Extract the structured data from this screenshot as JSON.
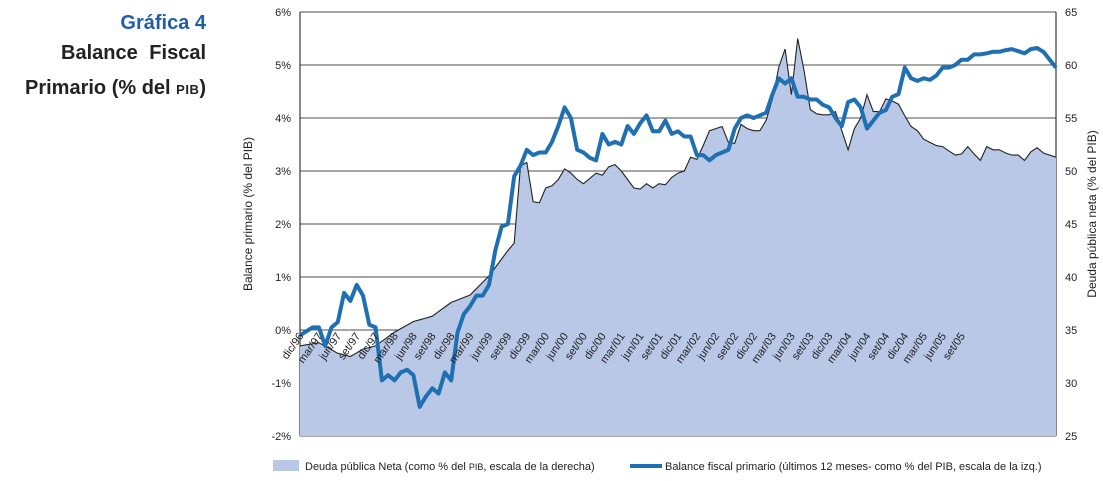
{
  "caption": {
    "number": "Gráfica 4",
    "line1": "Balance Fiscal",
    "line2_prefix": "Primario (% del ",
    "line2_pib": "PIB",
    "line2_suffix": ")"
  },
  "colors": {
    "area_fill": "#b8c8e6",
    "area_line": "#222222",
    "balance_line": "#1f6fb3",
    "grid": "#111111"
  },
  "chart_data": {
    "type": "line",
    "left_axis": {
      "label": "Balance primario (% del PIB)",
      "ylim": [
        -2,
        6
      ],
      "ticks": [
        -2,
        -1,
        0,
        1,
        2,
        3,
        4,
        5,
        6
      ],
      "tick_labels": [
        "-2%",
        "-1%",
        "0%",
        "1%",
        "2%",
        "3%",
        "4%",
        "5%",
        "6%"
      ]
    },
    "right_axis": {
      "label": "Deuda pública neta (% del PIB)",
      "ylim": [
        25,
        65
      ],
      "ticks": [
        25,
        30,
        35,
        40,
        45,
        50,
        55,
        60,
        65
      ],
      "tick_labels": [
        "25",
        "30",
        "35",
        "40",
        "45",
        "50",
        "55",
        "60",
        "65"
      ]
    },
    "x_tick_labels": [
      "dic/96",
      "mar/97",
      "jun/97",
      "set/97",
      "dic/97",
      "mar/98",
      "jun/98",
      "set/98",
      "dic/98",
      "mar/99",
      "jun/99",
      "set/99",
      "dic/99",
      "mar/00",
      "jun/00",
      "set/00",
      "dic/00",
      "mar/01",
      "jun/01",
      "set/01",
      "dic/01",
      "mar/02",
      "jun/02",
      "set/02",
      "dic/02",
      "mar/03",
      "jun/03",
      "set/03",
      "dic/03",
      "mar/04",
      "jun/04",
      "set/04",
      "dic/04",
      "mar/05",
      "jun/05",
      "set/05"
    ],
    "n_months": 108,
    "series": [
      {
        "name": "Deuda pública Neta (como % del PIB, escala de la derecha)",
        "legend_prefix": "Deuda pública Neta (como % del ",
        "legend_pib": "PIB",
        "legend_suffix": ", escala de la derecha)",
        "axis": "right",
        "style": "area",
        "keyframes": [
          [
            0,
            33.5
          ],
          [
            3,
            33.8
          ],
          [
            6,
            32.8
          ],
          [
            8,
            32.5
          ],
          [
            10,
            33.2
          ],
          [
            12,
            33.5
          ],
          [
            15,
            34.8
          ],
          [
            18,
            35.8
          ],
          [
            21,
            36.3
          ],
          [
            24,
            37.6
          ],
          [
            27,
            38.3
          ],
          [
            30,
            40.1
          ],
          [
            33,
            42.5
          ],
          [
            34,
            43.2
          ],
          [
            35,
            50.5
          ],
          [
            36,
            50.8
          ],
          [
            37,
            47.1
          ],
          [
            38,
            47.0
          ],
          [
            39,
            48.4
          ],
          [
            40,
            48.6
          ],
          [
            41,
            49.2
          ],
          [
            42,
            50.2
          ],
          [
            43,
            49.8
          ],
          [
            44,
            49.2
          ],
          [
            45,
            48.8
          ],
          [
            46,
            49.3
          ],
          [
            47,
            49.8
          ],
          [
            48,
            49.6
          ],
          [
            49,
            50.4
          ],
          [
            50,
            50.6
          ],
          [
            51,
            50.0
          ],
          [
            52,
            49.2
          ],
          [
            53,
            48.4
          ],
          [
            54,
            48.3
          ],
          [
            55,
            48.8
          ],
          [
            56,
            48.4
          ],
          [
            57,
            48.8
          ],
          [
            58,
            48.7
          ],
          [
            59,
            49.4
          ],
          [
            60,
            49.8
          ],
          [
            61,
            50.0
          ],
          [
            62,
            51.3
          ],
          [
            63,
            51.1
          ],
          [
            64,
            52.4
          ],
          [
            65,
            53.8
          ],
          [
            66,
            54.0
          ],
          [
            67,
            54.2
          ],
          [
            68,
            52.7
          ],
          [
            69,
            52.6
          ],
          [
            70,
            54.4
          ],
          [
            71,
            54.0
          ],
          [
            72,
            53.8
          ],
          [
            73,
            53.8
          ],
          [
            74,
            54.8
          ],
          [
            75,
            56.8
          ],
          [
            76,
            59.8
          ],
          [
            77,
            61.5
          ],
          [
            78,
            57.2
          ],
          [
            79,
            62.5
          ],
          [
            80,
            59.5
          ],
          [
            81,
            55.8
          ],
          [
            82,
            55.4
          ],
          [
            83,
            55.3
          ],
          [
            84,
            55.3
          ],
          [
            85,
            55.6
          ],
          [
            86,
            53.8
          ],
          [
            87,
            52.0
          ],
          [
            88,
            54.0
          ],
          [
            89,
            55.0
          ],
          [
            90,
            57.2
          ],
          [
            91,
            55.6
          ],
          [
            92,
            55.6
          ],
          [
            93,
            56.8
          ],
          [
            94,
            56.6
          ],
          [
            95,
            56.3
          ],
          [
            96,
            55.2
          ],
          [
            97,
            54.2
          ],
          [
            98,
            53.8
          ],
          [
            99,
            53.0
          ],
          [
            100,
            52.7
          ],
          [
            101,
            52.4
          ],
          [
            102,
            52.3
          ],
          [
            103,
            51.9
          ],
          [
            104,
            51.5
          ],
          [
            105,
            51.6
          ],
          [
            106,
            52.3
          ],
          [
            107,
            51.6
          ],
          [
            108,
            51.0
          ],
          [
            109,
            52.3
          ],
          [
            110,
            52.0
          ],
          [
            111,
            52.0
          ],
          [
            112,
            51.7
          ],
          [
            113,
            51.5
          ],
          [
            114,
            51.5
          ],
          [
            115,
            51.0
          ],
          [
            116,
            51.8
          ],
          [
            117,
            52.2
          ],
          [
            118,
            51.7
          ],
          [
            119,
            51.5
          ],
          [
            120,
            51.3
          ]
        ]
      },
      {
        "name": "Balance fiscal primario (últimos 12 meses- como % del PIB, escala de la izq.)",
        "legend": "Balance fiscal primario (últimos 12 meses- como % del PIB, escala de la izq.)",
        "axis": "left",
        "style": "line",
        "keyframes": [
          [
            0,
            -0.1
          ],
          [
            2,
            0.05
          ],
          [
            3,
            0.05
          ],
          [
            4,
            -0.3
          ],
          [
            5,
            0.05
          ],
          [
            6,
            0.15
          ],
          [
            7,
            0.7
          ],
          [
            8,
            0.55
          ],
          [
            9,
            0.85
          ],
          [
            10,
            0.65
          ],
          [
            11,
            0.1
          ],
          [
            12,
            0.05
          ],
          [
            13,
            -0.95
          ],
          [
            14,
            -0.85
          ],
          [
            15,
            -0.95
          ],
          [
            16,
            -0.8
          ],
          [
            17,
            -0.75
          ],
          [
            18,
            -0.85
          ],
          [
            19,
            -1.45
          ],
          [
            20,
            -1.25
          ],
          [
            21,
            -1.1
          ],
          [
            22,
            -1.2
          ],
          [
            23,
            -0.8
          ],
          [
            24,
            -0.95
          ],
          [
            25,
            -0.05
          ],
          [
            26,
            0.3
          ],
          [
            27,
            0.45
          ],
          [
            28,
            0.65
          ],
          [
            29,
            0.65
          ],
          [
            30,
            0.85
          ],
          [
            31,
            1.5
          ],
          [
            32,
            1.95
          ],
          [
            33,
            2.0
          ],
          [
            34,
            2.9
          ],
          [
            35,
            3.1
          ],
          [
            36,
            3.4
          ],
          [
            37,
            3.3
          ],
          [
            38,
            3.35
          ],
          [
            39,
            3.35
          ],
          [
            40,
            3.55
          ],
          [
            41,
            3.85
          ],
          [
            42,
            4.2
          ],
          [
            43,
            4.0
          ],
          [
            44,
            3.4
          ],
          [
            45,
            3.35
          ],
          [
            46,
            3.25
          ],
          [
            47,
            3.2
          ],
          [
            48,
            3.7
          ],
          [
            49,
            3.5
          ],
          [
            50,
            3.55
          ],
          [
            51,
            3.5
          ],
          [
            52,
            3.85
          ],
          [
            53,
            3.7
          ],
          [
            54,
            3.9
          ],
          [
            55,
            4.05
          ],
          [
            56,
            3.75
          ],
          [
            57,
            3.75
          ],
          [
            58,
            3.95
          ],
          [
            59,
            3.7
          ],
          [
            60,
            3.75
          ],
          [
            61,
            3.65
          ],
          [
            62,
            3.65
          ],
          [
            63,
            3.3
          ],
          [
            64,
            3.3
          ],
          [
            65,
            3.2
          ],
          [
            66,
            3.3
          ],
          [
            67,
            3.35
          ],
          [
            68,
            3.4
          ],
          [
            69,
            3.8
          ],
          [
            70,
            4.0
          ],
          [
            71,
            4.05
          ],
          [
            72,
            4.0
          ],
          [
            73,
            4.05
          ],
          [
            74,
            4.1
          ],
          [
            75,
            4.45
          ],
          [
            76,
            4.75
          ],
          [
            77,
            4.65
          ],
          [
            78,
            4.75
          ],
          [
            79,
            4.4
          ],
          [
            80,
            4.4
          ],
          [
            81,
            4.35
          ],
          [
            82,
            4.35
          ],
          [
            83,
            4.25
          ],
          [
            84,
            4.2
          ],
          [
            85,
            4.0
          ],
          [
            86,
            3.85
          ],
          [
            87,
            4.3
          ],
          [
            88,
            4.35
          ],
          [
            89,
            4.2
          ],
          [
            90,
            3.8
          ],
          [
            91,
            3.95
          ],
          [
            92,
            4.1
          ],
          [
            93,
            4.15
          ],
          [
            94,
            4.4
          ],
          [
            95,
            4.45
          ],
          [
            96,
            4.95
          ],
          [
            97,
            4.75
          ],
          [
            98,
            4.7
          ],
          [
            99,
            4.75
          ],
          [
            100,
            4.72
          ],
          [
            101,
            4.8
          ],
          [
            102,
            4.95
          ],
          [
            103,
            4.95
          ],
          [
            104,
            5.0
          ],
          [
            105,
            5.1
          ],
          [
            106,
            5.1
          ],
          [
            107,
            5.2
          ],
          [
            108,
            5.2
          ],
          [
            109,
            5.22
          ],
          [
            110,
            5.25
          ],
          [
            111,
            5.25
          ],
          [
            112,
            5.28
          ],
          [
            113,
            5.3
          ],
          [
            114,
            5.26
          ],
          [
            115,
            5.22
          ],
          [
            116,
            5.3
          ],
          [
            117,
            5.32
          ],
          [
            118,
            5.25
          ],
          [
            119,
            5.1
          ],
          [
            120,
            4.95
          ]
        ]
      }
    ]
  }
}
